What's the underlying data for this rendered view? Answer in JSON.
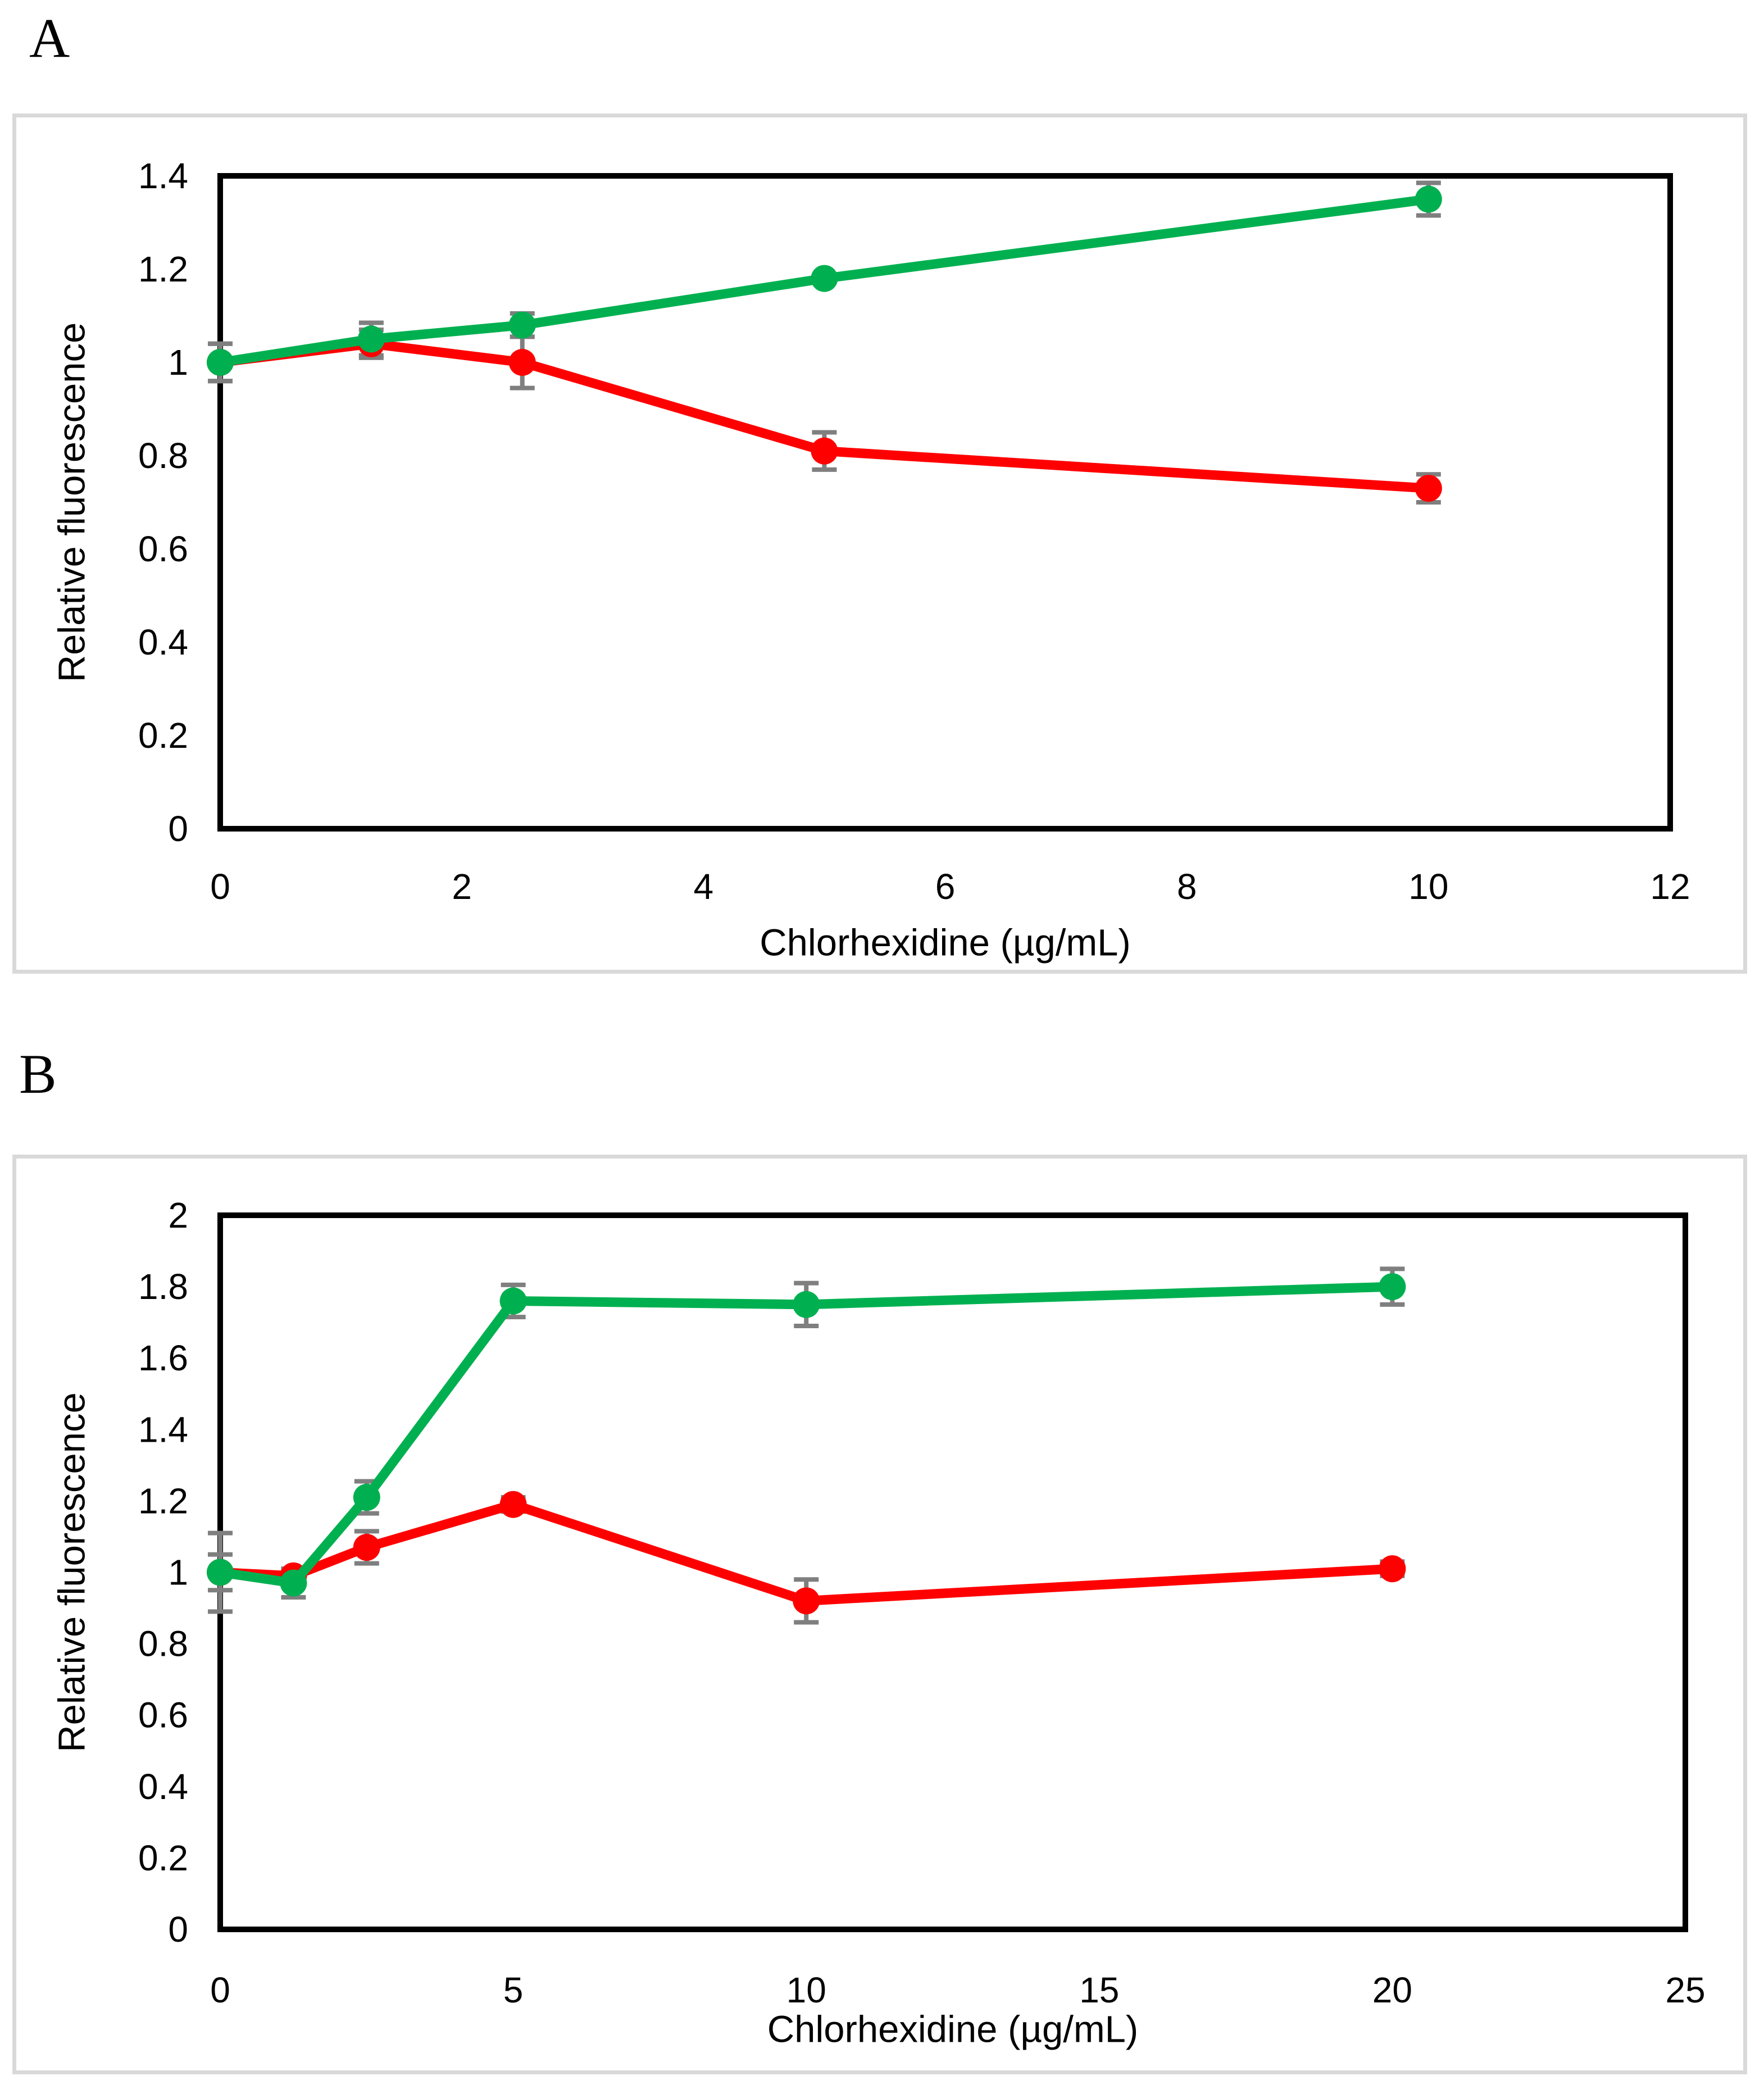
{
  "figure": {
    "background": "#ffffff",
    "panel_border_color": "#d9d9d9",
    "frame_color": "#000000",
    "error_bar_color": "#7f7f7f"
  },
  "panels": [
    {
      "label": "A",
      "chart_data": {
        "type": "line",
        "title": "",
        "xlabel": "Chlorhexidine (µg/mL)",
        "ylabel": "Relative fluorescence",
        "xlim": [
          0,
          12
        ],
        "ylim": [
          0,
          1.4
        ],
        "xticks": [
          0,
          2,
          4,
          6,
          8,
          10,
          12
        ],
        "yticks": [
          0,
          0.2,
          0.4,
          0.6,
          0.8,
          1,
          1.2,
          1.4
        ],
        "grid": false,
        "legend": "none",
        "x": [
          0,
          1.25,
          2.5,
          5,
          10
        ],
        "series": [
          {
            "name": "green-series",
            "color": "#00B050",
            "values": [
              1.0,
              1.05,
              1.08,
              1.18,
              1.35
            ],
            "errors": [
              0.04,
              0.035,
              0.025,
              0,
              0.035
            ]
          },
          {
            "name": "red-series",
            "color": "#FF0000",
            "values": [
              1.0,
              1.04,
              1.0,
              0.81,
              0.73
            ],
            "errors": [
              0.04,
              0.03,
              0.055,
              0.04,
              0.03
            ]
          }
        ]
      }
    },
    {
      "label": "B",
      "chart_data": {
        "type": "line",
        "title": "",
        "xlabel": "Chlorhexidine (µg/mL)",
        "ylabel": "Relative fluorescence",
        "xlim": [
          0,
          25
        ],
        "ylim": [
          0,
          2
        ],
        "xticks": [
          0,
          5,
          10,
          15,
          20,
          25
        ],
        "yticks": [
          0,
          0.2,
          0.4,
          0.6,
          0.8,
          1,
          1.2,
          1.4,
          1.6,
          1.8,
          2
        ],
        "grid": false,
        "legend": "none",
        "x": [
          0,
          1.25,
          2.5,
          5,
          10,
          20
        ],
        "series": [
          {
            "name": "green-series",
            "color": "#00B050",
            "values": [
              1.0,
              0.97,
              1.21,
              1.76,
              1.75,
              1.8
            ],
            "errors": [
              0.11,
              0.04,
              0.045,
              0.045,
              0.06,
              0.05
            ]
          },
          {
            "name": "red-series",
            "color": "#FF0000",
            "values": [
              1.0,
              0.99,
              1.07,
              1.19,
              0.92,
              1.01
            ],
            "errors": [
              0.05,
              0.02,
              0.045,
              0.02,
              0.06,
              0.02
            ]
          }
        ]
      }
    }
  ]
}
